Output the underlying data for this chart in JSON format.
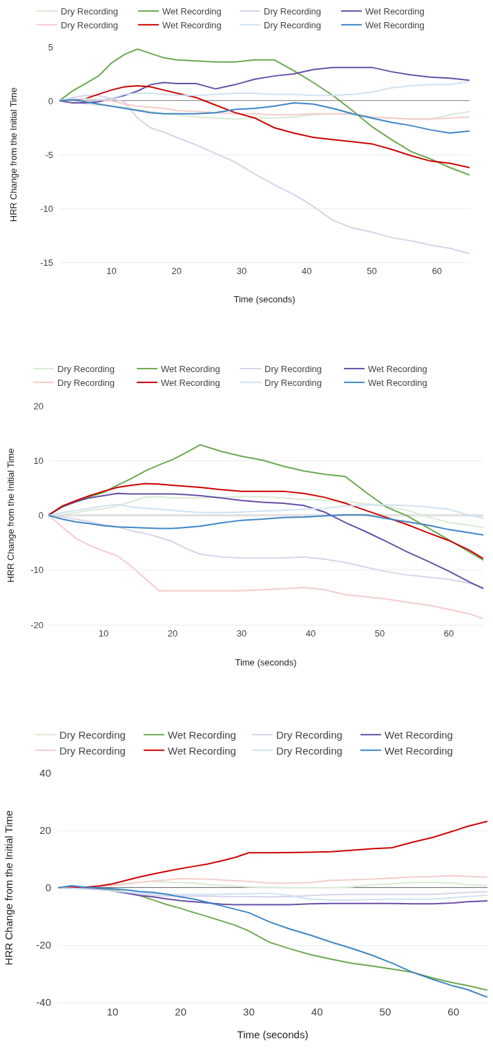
{
  "chart_data": [
    {
      "type": "line",
      "xlabel": "Time (seconds)",
      "ylabel": "HRR Change from the Initial Time",
      "grid": "y",
      "legend": "top",
      "xlim": [
        2,
        65
      ],
      "xticks": [
        10,
        20,
        30,
        40,
        50,
        60
      ],
      "ylim": [
        -15,
        5
      ],
      "yticks": [
        -15,
        -10,
        -5,
        0,
        5
      ],
      "ref_lines": [
        {
          "axis": "y",
          "value": 0,
          "color": "#666666"
        }
      ],
      "x": [
        2,
        4,
        6,
        8,
        10,
        12,
        14,
        16,
        18,
        20,
        23,
        26,
        29,
        32,
        35,
        38,
        41,
        44,
        47,
        50,
        53,
        56,
        59,
        62,
        65
      ],
      "series": [
        {
          "name": "Dry Recording",
          "color": "#d9ead3",
          "values": [
            0,
            -0.1,
            -0.3,
            -0.4,
            -0.5,
            -0.6,
            -0.8,
            -1.0,
            -1.2,
            -1.3,
            -1.5,
            -1.6,
            -1.7,
            -1.6,
            -1.6,
            -1.5,
            -1.3,
            -1.2,
            -1.3,
            -1.5,
            -1.6,
            -1.7,
            -1.7,
            -1.3,
            -1.0
          ]
        },
        {
          "name": "Wet Recording",
          "color": "#6aa84f",
          "values": [
            0,
            0.9,
            1.6,
            2.3,
            3.5,
            4.3,
            4.8,
            4.4,
            4.0,
            3.8,
            3.7,
            3.6,
            3.6,
            3.8,
            3.8,
            2.8,
            1.7,
            0.5,
            -0.9,
            -2.4,
            -3.6,
            -4.7,
            -5.4,
            -6.2,
            -6.9
          ]
        },
        {
          "name": "Dry Recording",
          "color": "#d9d2e9",
          "values": [
            0,
            0.3,
            0.5,
            0.5,
            0.2,
            -0.1,
            -1.6,
            -2.5,
            -2.9,
            -3.4,
            -4.1,
            -4.9,
            -5.7,
            -6.8,
            -7.8,
            -8.7,
            -9.8,
            -11.1,
            -11.8,
            -12.2,
            -12.7,
            -13.0,
            -13.4,
            -13.7,
            -14.2
          ]
        },
        {
          "name": "Wet Recording",
          "color": "#674ea7",
          "values": [
            0,
            -0.2,
            -0.2,
            -0.1,
            0.2,
            0.5,
            0.9,
            1.5,
            1.7,
            1.6,
            1.6,
            1.1,
            1.5,
            2.0,
            2.3,
            2.5,
            2.9,
            3.1,
            3.1,
            3.1,
            2.7,
            2.4,
            2.2,
            2.1,
            1.9
          ]
        },
        {
          "name": "Dry Recording",
          "color": "#f4cccc",
          "values": [
            0,
            0.1,
            0.1,
            0.1,
            0,
            -0.3,
            -0.5,
            -0.6,
            -0.7,
            -0.9,
            -1.0,
            -1.1,
            -1.2,
            -1.2,
            -1.3,
            -1.3,
            -1.2,
            -1.2,
            -1.2,
            -1.5,
            -1.6,
            -1.7,
            -1.7,
            -1.6,
            -1.5
          ]
        },
        {
          "name": "Wet Recording",
          "color": "#cc0000",
          "values": [
            0,
            0.1,
            0.2,
            0.6,
            1.0,
            1.3,
            1.4,
            1.3,
            1.0,
            0.7,
            0.3,
            -0.4,
            -1.1,
            -1.6,
            -2.5,
            -3.0,
            -3.4,
            -3.6,
            -3.8,
            -4.0,
            -4.5,
            -5.1,
            -5.6,
            -5.8,
            -6.2
          ]
        },
        {
          "name": "Dry Recording",
          "color": "#cfe2f3",
          "values": [
            0,
            0.2,
            0.2,
            0.1,
            0.2,
            0.6,
            0.7,
            0.7,
            0.6,
            0.5,
            0.5,
            0.6,
            0.7,
            0.7,
            0.6,
            0.6,
            0.5,
            0.5,
            0.6,
            0.8,
            1.2,
            1.4,
            1.5,
            1.5,
            1.8
          ]
        },
        {
          "name": "Wet Recording",
          "color": "#3d85c6",
          "values": [
            0,
            0.1,
            -0.1,
            -0.3,
            -0.5,
            -0.7,
            -0.9,
            -1.1,
            -1.2,
            -1.2,
            -1.2,
            -1.1,
            -0.8,
            -0.7,
            -0.5,
            -0.2,
            -0.3,
            -0.7,
            -1.2,
            -1.6,
            -2.0,
            -2.3,
            -2.7,
            -3.0,
            -2.8
          ]
        }
      ]
    },
    {
      "type": "line",
      "xlabel": "Time (seconds)",
      "ylabel": "HRR Change from the Initial Time",
      "grid": "y",
      "legend": "top",
      "xlim": [
        2,
        65
      ],
      "xticks": [
        10,
        20,
        30,
        40,
        50,
        60
      ],
      "ylim": [
        -20,
        20
      ],
      "yticks": [
        -20,
        -10,
        0,
        10,
        20
      ],
      "ref_lines": [
        {
          "axis": "y",
          "value": 0,
          "color": "#666666"
        }
      ],
      "x": [
        2,
        4,
        6,
        8,
        10,
        12,
        14,
        16,
        18,
        20,
        22,
        24,
        27,
        30,
        33,
        36,
        39,
        42,
        45,
        48,
        51,
        54,
        57,
        60,
        63,
        65
      ],
      "series": [
        {
          "name": "Dry Recording",
          "color": "#d9ead3",
          "values": [
            0,
            0.2,
            0.5,
            0.9,
            1.2,
            1.7,
            2.5,
            3.3,
            3.4,
            3.2,
            3.2,
            3.2,
            3.3,
            3.4,
            3.4,
            3.2,
            2.9,
            2.8,
            2.5,
            2.1,
            1.6,
            0.9,
            -0.3,
            -1.3,
            -1.8,
            -2.2
          ]
        },
        {
          "name": "Wet Recording",
          "color": "#6aa84f",
          "values": [
            0,
            1.5,
            2.5,
            3.4,
            4.2,
            5.5,
            6.7,
            8.1,
            9.2,
            10.2,
            11.5,
            12.9,
            11.7,
            10.8,
            10.1,
            9.0,
            8.1,
            7.5,
            7.1,
            4.2,
            1.5,
            -0.1,
            -2.3,
            -4.5,
            -6.7,
            -8.2
          ]
        },
        {
          "name": "Dry Recording",
          "color": "#d9d2e9",
          "values": [
            0,
            -0.3,
            -0.7,
            -1.2,
            -1.7,
            -2.1,
            -2.8,
            -3.3,
            -4.0,
            -4.8,
            -6.1,
            -7.1,
            -7.6,
            -7.8,
            -7.8,
            -7.8,
            -7.6,
            -8.0,
            -8.6,
            -9.5,
            -10.3,
            -10.9,
            -11.3,
            -11.7,
            -12.4,
            -13.2
          ]
        },
        {
          "name": "Wet Recording",
          "color": "#674ea7",
          "values": [
            0,
            1.6,
            2.5,
            3.2,
            3.6,
            4.0,
            3.9,
            3.9,
            3.9,
            3.9,
            3.8,
            3.6,
            3.2,
            2.7,
            2.4,
            2.2,
            1.8,
            0.6,
            -1.3,
            -3.0,
            -4.8,
            -6.7,
            -8.4,
            -10.2,
            -12.2,
            -13.4
          ]
        },
        {
          "name": "Dry Recording",
          "color": "#f4cccc",
          "values": [
            0,
            -2.1,
            -4.2,
            -5.5,
            -6.5,
            -7.4,
            -9.3,
            -11.5,
            -13.8,
            -13.8,
            -13.8,
            -13.8,
            -13.8,
            -13.8,
            -13.6,
            -13.4,
            -13.2,
            -13.6,
            -14.5,
            -14.9,
            -15.3,
            -15.9,
            -16.4,
            -17.2,
            -18.0,
            -18.9
          ]
        },
        {
          "name": "Wet Recording",
          "color": "#cc0000",
          "values": [
            0,
            1.7,
            2.7,
            3.6,
            4.4,
            5.1,
            5.5,
            5.8,
            5.7,
            5.5,
            5.3,
            5.1,
            4.7,
            4.4,
            4.4,
            4.4,
            4.0,
            3.3,
            2.2,
            0.9,
            -0.4,
            -1.7,
            -3.2,
            -4.6,
            -6.4,
            -7.9
          ]
        },
        {
          "name": "Dry Recording",
          "color": "#cfe2f3",
          "values": [
            0,
            0.5,
            0.9,
            1.3,
            1.7,
            2.0,
            1.5,
            1.3,
            1.1,
            0.9,
            0.7,
            0.5,
            0.5,
            0.6,
            0.8,
            0.9,
            1.1,
            1.3,
            1.7,
            1.9,
            1.9,
            1.8,
            1.5,
            1.1,
            0,
            -0.5
          ]
        },
        {
          "name": "Wet Recording",
          "color": "#3d85c6",
          "values": [
            0,
            -0.7,
            -1.2,
            -1.5,
            -1.9,
            -2.1,
            -2.2,
            -2.3,
            -2.4,
            -2.4,
            -2.2,
            -2.0,
            -1.4,
            -0.9,
            -0.7,
            -0.4,
            -0.3,
            -0.1,
            0.1,
            0.1,
            -0.6,
            -1.2,
            -1.8,
            -2.6,
            -3.2,
            -3.6
          ]
        }
      ]
    },
    {
      "type": "line",
      "xlabel": "Time (seconds)",
      "ylabel": "HRR Change from the Initial Time",
      "grid": "y",
      "legend": "top",
      "xlim": [
        2,
        65
      ],
      "xticks": [
        10,
        20,
        30,
        40,
        50,
        60
      ],
      "ylim": [
        -40,
        40
      ],
      "yticks": [
        -40,
        -20,
        0,
        20,
        40
      ],
      "ref_lines": [
        {
          "axis": "y",
          "value": 0,
          "color": "#444444"
        }
      ],
      "x": [
        2,
        4,
        6,
        8,
        10,
        12,
        14,
        16,
        18,
        20,
        22,
        24,
        26,
        28,
        30,
        33,
        36,
        39,
        42,
        45,
        48,
        51,
        54,
        57,
        60,
        62,
        65
      ],
      "series": [
        {
          "name": "Dry Recording",
          "color": "#d9ead3",
          "values": [
            0,
            0.1,
            0.2,
            0.5,
            1.0,
            1.4,
            1.9,
            2.2,
            1.9,
            1.8,
            1.6,
            1.1,
            0.8,
            0.6,
            0.3,
            0.2,
            0,
            0,
            0,
            0.3,
            1.0,
            1.4,
            1.8,
            1.9,
            1.6,
            1.1,
            0.8
          ]
        },
        {
          "name": "Wet Recording",
          "color": "#6aa84f",
          "values": [
            null,
            null,
            null,
            -0.3,
            -0.7,
            -1.5,
            -2.7,
            -4.3,
            -5.9,
            -7.2,
            -8.7,
            -10.1,
            -11.6,
            -13.1,
            -15.1,
            -19.0,
            -21.3,
            -23.3,
            -24.9,
            -26.3,
            -27.3,
            -28.4,
            -29.5,
            -31.5,
            -33.2,
            -34.1,
            -35.7
          ]
        },
        {
          "name": "Dry Recording",
          "color": "#d9d2e9",
          "values": [
            0,
            -0.2,
            -0.4,
            -0.7,
            -1.1,
            -1.6,
            -2.3,
            -2.7,
            -2.9,
            -2.9,
            -2.9,
            -2.9,
            -3.1,
            -3.1,
            -3.1,
            -3.2,
            -3.1,
            -2.7,
            -2.4,
            -2.3,
            -2.3,
            -2.3,
            -2.3,
            -2.3,
            -1.9,
            -1.6,
            -1.4
          ]
        },
        {
          "name": "Wet Recording",
          "color": "#674ea7",
          "values": [
            0,
            -0.1,
            -0.2,
            -0.5,
            -1.1,
            -1.9,
            -2.7,
            -3.2,
            -3.9,
            -4.5,
            -4.9,
            -5.3,
            -5.7,
            -5.9,
            -5.9,
            -5.9,
            -5.9,
            -5.6,
            -5.5,
            -5.5,
            -5.5,
            -5.5,
            -5.6,
            -5.6,
            -5.3,
            -4.9,
            -4.6
          ]
        },
        {
          "name": "Dry Recording",
          "color": "#f4cccc",
          "values": [
            0,
            0.1,
            0.2,
            0.4,
            0.8,
            1.4,
            1.9,
            2.4,
            2.7,
            3.2,
            3.1,
            3.0,
            2.7,
            2.4,
            2.2,
            1.6,
            1.6,
            1.8,
            2.6,
            2.8,
            3.0,
            3.4,
            3.8,
            3.9,
            4.2,
            4.0,
            3.7
          ]
        },
        {
          "name": "Wet Recording",
          "color": "#cc0000",
          "values": [
            0,
            0.2,
            0.2,
            0.6,
            1.4,
            2.6,
            3.8,
            4.8,
            5.8,
            6.7,
            7.5,
            8.3,
            9.4,
            10.6,
            12.2,
            12.2,
            12.3,
            12.4,
            12.6,
            13.1,
            13.6,
            14.0,
            15.9,
            17.6,
            19.8,
            21.4,
            23.2
          ]
        },
        {
          "name": "Dry Recording",
          "color": "#cfe2f3",
          "values": [
            0,
            -0.2,
            -0.4,
            -0.7,
            -1.1,
            -1.5,
            -1.9,
            -2.1,
            -2.3,
            -2.3,
            -2.3,
            -2.3,
            -2.3,
            -2.1,
            -2.1,
            -1.9,
            -2.7,
            -4.0,
            -4.3,
            -4.3,
            -4.1,
            -4.0,
            -4.0,
            -4.0,
            -3.5,
            -3.1,
            -2.6
          ]
        },
        {
          "name": "Wet Recording",
          "color": "#3d85c6",
          "values": [
            0,
            0.7,
            0.2,
            0,
            -0.3,
            -0.7,
            -1.3,
            -1.6,
            -2.3,
            -3.2,
            -4.0,
            -5.1,
            -6.3,
            -7.5,
            -8.7,
            -11.9,
            -14.4,
            -16.5,
            -18.9,
            -21.1,
            -23.5,
            -26.3,
            -29.5,
            -32.0,
            -34.3,
            -35.5,
            -38.2
          ]
        }
      ]
    }
  ]
}
